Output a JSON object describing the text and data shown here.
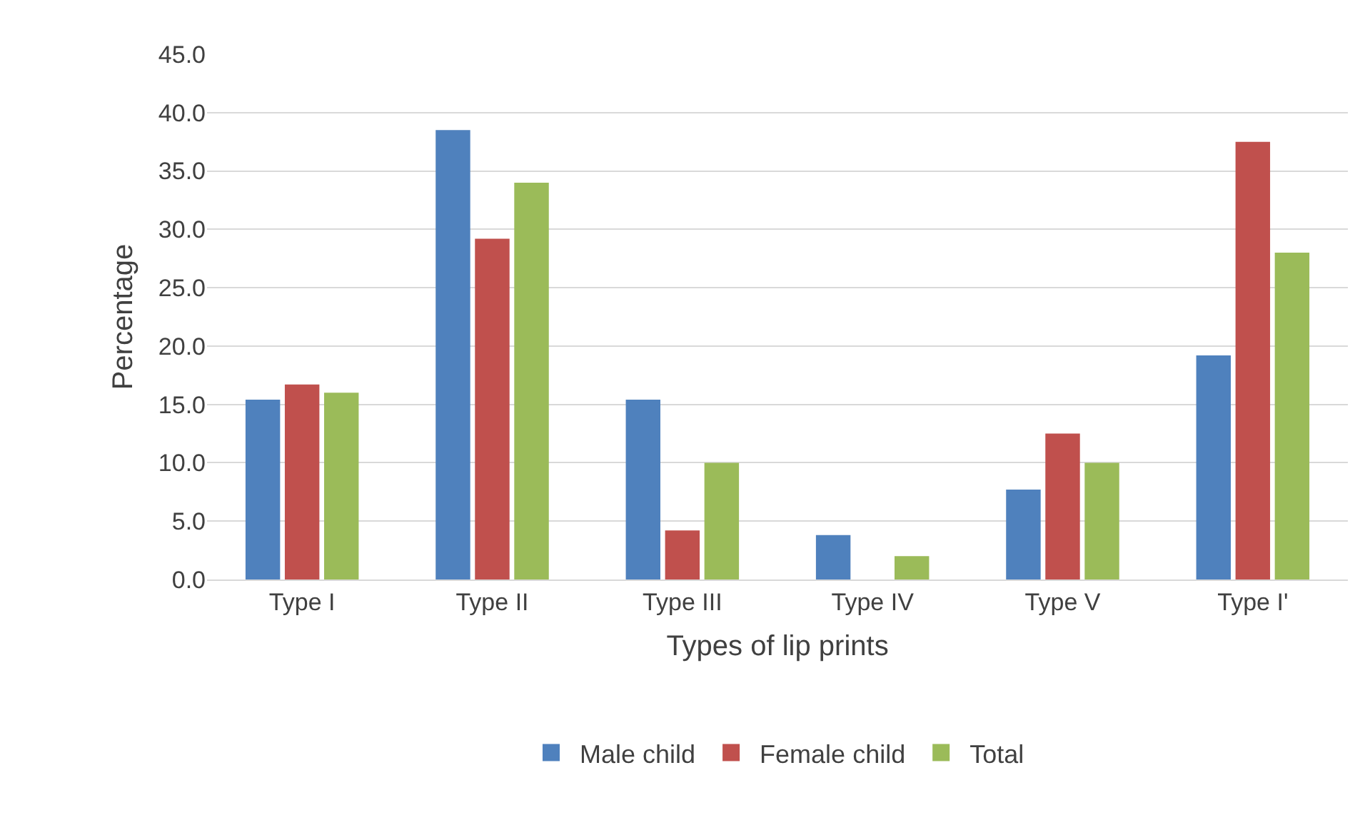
{
  "chart_data": {
    "type": "bar",
    "xlabel": "Types of lip prints",
    "ylabel": "Percentage",
    "categories": [
      "Type I",
      "Type II",
      "Type III",
      "Type IV",
      "Type V",
      "Type I'"
    ],
    "series": [
      {
        "name": "Male child",
        "color": "#4f81bd",
        "values": [
          15.4,
          38.5,
          15.4,
          3.8,
          7.7,
          19.2
        ]
      },
      {
        "name": "Female child",
        "color": "#c0504d",
        "values": [
          16.7,
          29.2,
          4.2,
          0,
          12.5,
          37.5
        ]
      },
      {
        "name": "Total",
        "color": "#9bbb59",
        "values": [
          16,
          34,
          10,
          2,
          10,
          28
        ]
      }
    ],
    "ylim": [
      0,
      45
    ],
    "yticks": [
      {
        "value": 0,
        "label": "0.0"
      },
      {
        "value": 5,
        "label": "5.0"
      },
      {
        "value": 10,
        "label": "10.0"
      },
      {
        "value": 15,
        "label": "15.0"
      },
      {
        "value": 20,
        "label": "20.0"
      },
      {
        "value": 25,
        "label": "25.0"
      },
      {
        "value": 30,
        "label": "30.0"
      },
      {
        "value": 35,
        "label": "35.0"
      },
      {
        "value": 40,
        "label": "40.0"
      },
      {
        "value": 45,
        "label": "45.0"
      }
    ],
    "grid": "y",
    "legend": "bottom"
  }
}
